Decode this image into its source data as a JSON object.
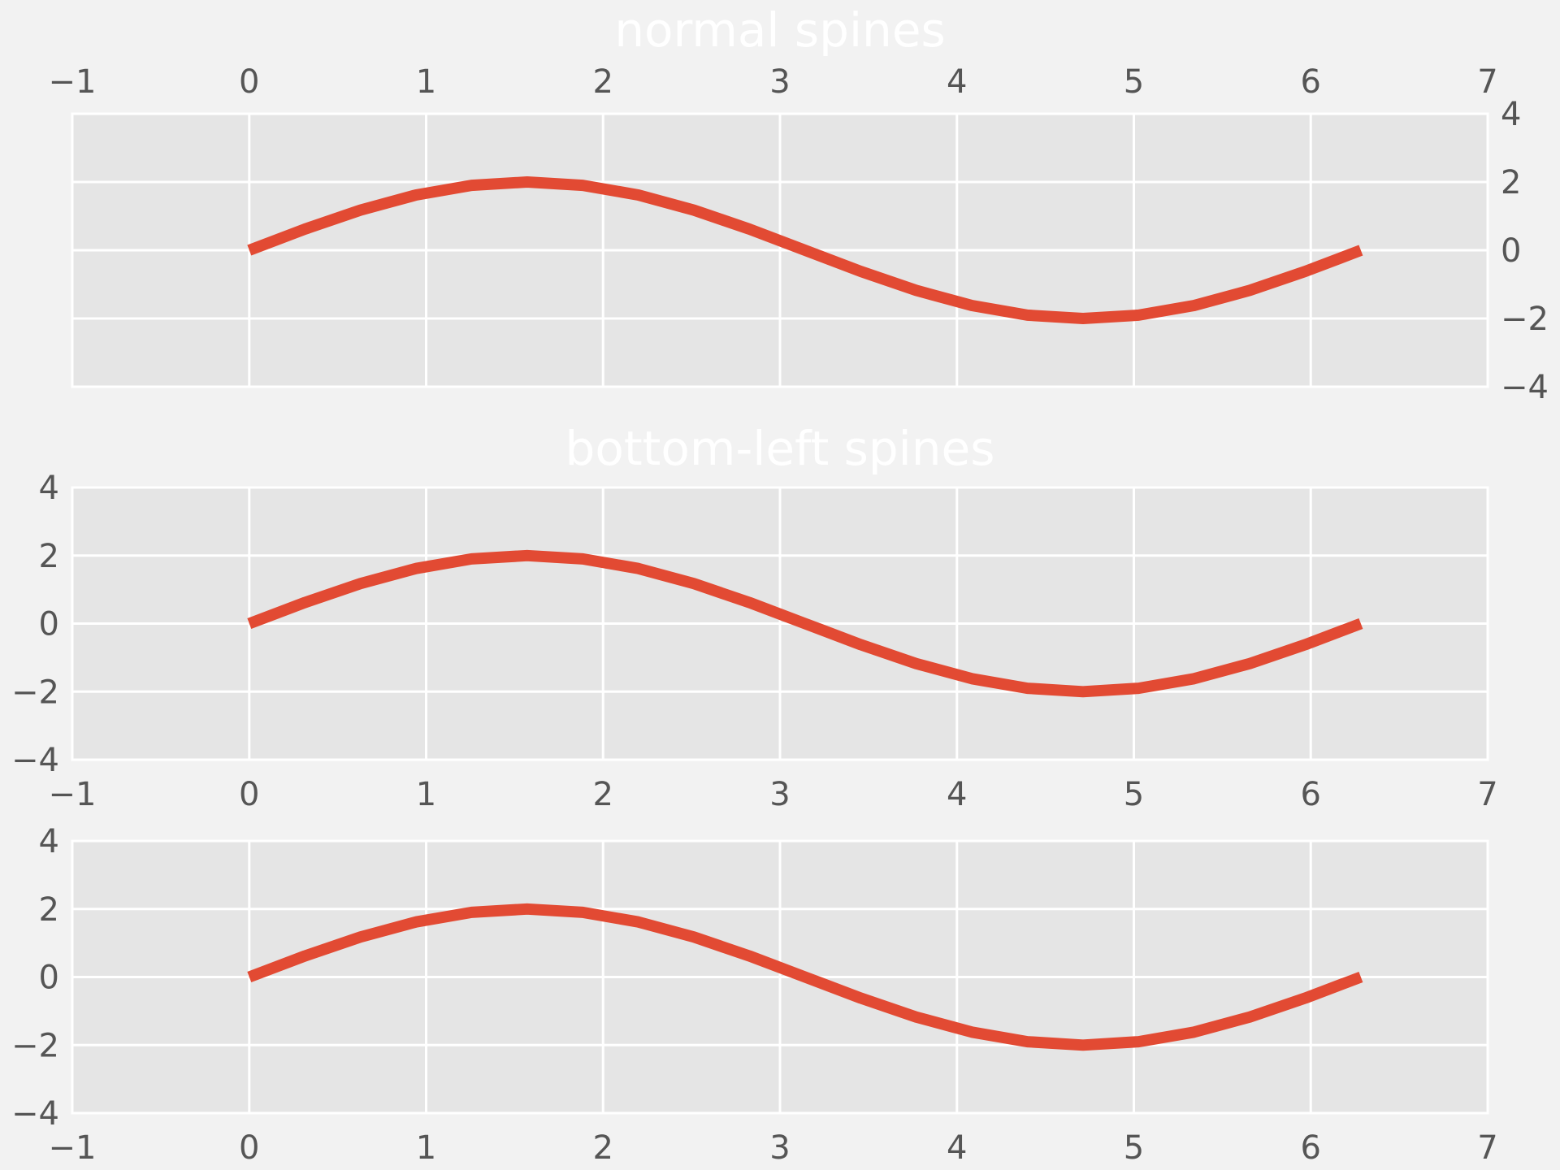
{
  "chart_data": [
    {
      "type": "line",
      "title": "normal spines",
      "xlim": [
        -1,
        7
      ],
      "ylim": [
        -4,
        4
      ],
      "x_ticks": [
        "−1",
        "0",
        "1",
        "2",
        "3",
        "4",
        "5",
        "6",
        "7"
      ],
      "y_ticks": [
        "−4",
        "−2",
        "0",
        "2",
        "4"
      ],
      "x_tick_position": "top",
      "y_tick_position": "right",
      "grid": true,
      "series": [
        {
          "x": [
            0,
            0.3142,
            0.6283,
            0.9425,
            1.2566,
            1.5708,
            1.885,
            2.1991,
            2.5133,
            2.8274,
            3.1416,
            3.4558,
            3.7699,
            4.0841,
            4.3982,
            4.7124,
            5.0265,
            5.3407,
            5.6549,
            5.969,
            6.2832
          ],
          "y": [
            0,
            0.618,
            1.1756,
            1.618,
            1.902,
            2.0,
            1.902,
            1.618,
            1.1756,
            0.618,
            0,
            -0.618,
            -1.1756,
            -1.618,
            -1.902,
            -2.0,
            -1.902,
            -1.618,
            -1.1756,
            -0.618,
            0
          ]
        }
      ]
    },
    {
      "type": "line",
      "title": "bottom-left spines",
      "xlim": [
        -1,
        7
      ],
      "ylim": [
        -4,
        4
      ],
      "x_ticks": [
        "−1",
        "0",
        "1",
        "2",
        "3",
        "4",
        "5",
        "6",
        "7"
      ],
      "y_ticks": [
        "−4",
        "−2",
        "0",
        "2",
        "4"
      ],
      "x_tick_position": "bottom",
      "y_tick_position": "left",
      "grid": true,
      "series": [
        {
          "x": [
            0,
            0.3142,
            0.6283,
            0.9425,
            1.2566,
            1.5708,
            1.885,
            2.1991,
            2.5133,
            2.8274,
            3.1416,
            3.4558,
            3.7699,
            4.0841,
            4.3982,
            4.7124,
            5.0265,
            5.3407,
            5.6549,
            5.969,
            6.2832
          ],
          "y": [
            0,
            0.618,
            1.1756,
            1.618,
            1.902,
            2.0,
            1.902,
            1.618,
            1.1756,
            0.618,
            0,
            -0.618,
            -1.1756,
            -1.618,
            -1.902,
            -2.0,
            -1.902,
            -1.618,
            -1.1756,
            -0.618,
            0
          ]
        }
      ]
    },
    {
      "type": "line",
      "title": "",
      "xlim": [
        -1,
        7
      ],
      "ylim": [
        -4,
        4
      ],
      "x_ticks": [
        "−1",
        "0",
        "1",
        "2",
        "3",
        "4",
        "5",
        "6",
        "7"
      ],
      "y_ticks": [
        "−4",
        "−2",
        "0",
        "2",
        "4"
      ],
      "x_tick_position": "bottom",
      "y_tick_position": "left",
      "grid": true,
      "series": [
        {
          "x": [
            0,
            0.3142,
            0.6283,
            0.9425,
            1.2566,
            1.5708,
            1.885,
            2.1991,
            2.5133,
            2.8274,
            3.1416,
            3.4558,
            3.7699,
            4.0841,
            4.3982,
            4.7124,
            5.0265,
            5.3407,
            5.6549,
            5.969,
            6.2832
          ],
          "y": [
            0,
            0.618,
            1.1756,
            1.618,
            1.902,
            2.0,
            1.902,
            1.618,
            1.1756,
            0.618,
            0,
            -0.618,
            -1.1756,
            -1.618,
            -1.902,
            -2.0,
            -1.902,
            -1.618,
            -1.1756,
            -0.618,
            0
          ]
        }
      ]
    }
  ],
  "colors": {
    "background": "#f2f2f2",
    "panel": "#e5e5e5",
    "grid": "#ffffff",
    "line": "#e24a33",
    "tick_text": "#555555",
    "title_text": "#ffffff"
  }
}
